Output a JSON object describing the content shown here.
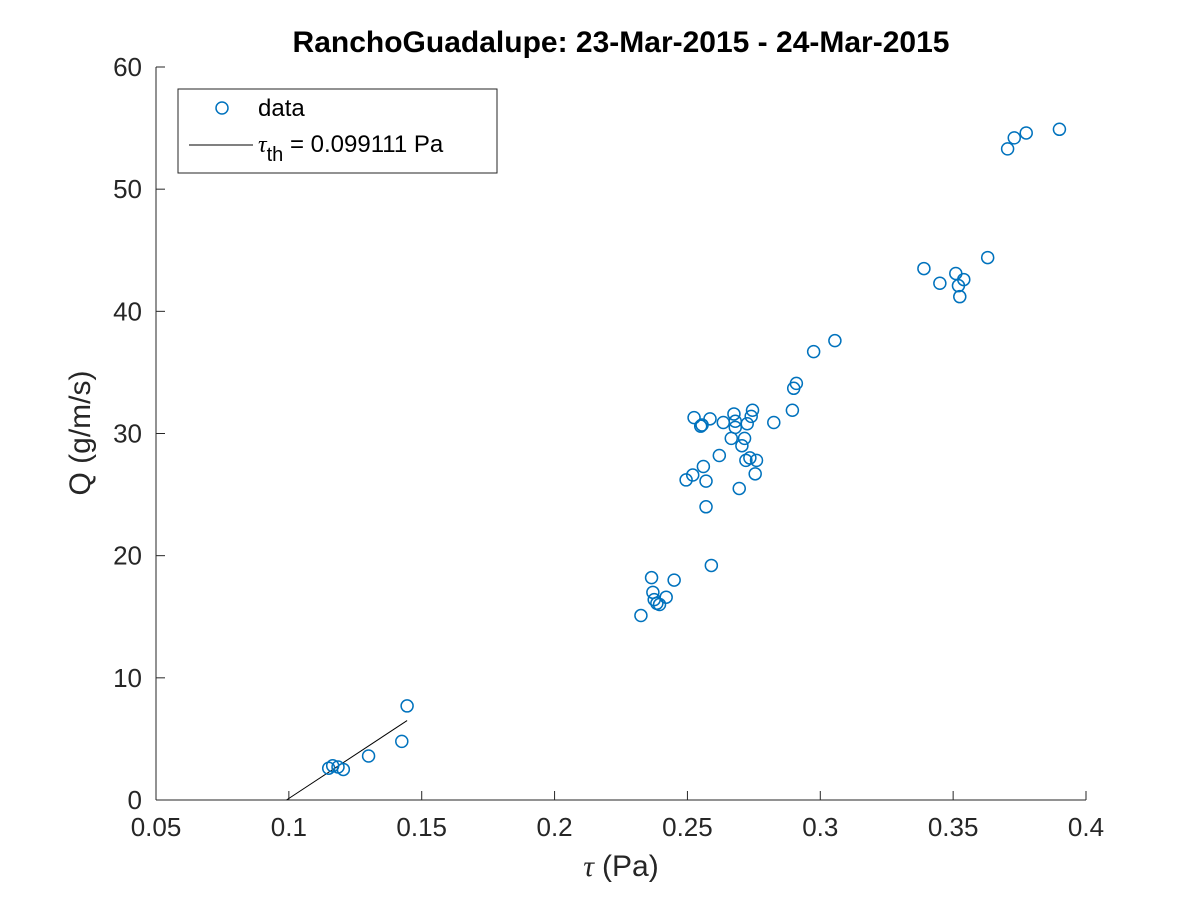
{
  "chart_data": {
    "type": "scatter",
    "title": "RanchoGuadalupe: 23-Mar-2015 - 24-Mar-2015",
    "xlabel_symbol": "τ",
    "xlabel_unit": "(Pa)",
    "ylabel": "Q (g/m/s)",
    "xlim": [
      0.05,
      0.4
    ],
    "ylim": [
      0,
      60
    ],
    "xticks": [
      0.05,
      0.1,
      0.15,
      0.2,
      0.25,
      0.3,
      0.35,
      0.4
    ],
    "xtick_labels": [
      "0.05",
      "0.1",
      "0.15",
      "0.2",
      "0.25",
      "0.3",
      "0.35",
      "0.4"
    ],
    "yticks": [
      0,
      10,
      20,
      30,
      40,
      50,
      60
    ],
    "ytick_labels": [
      "0",
      "10",
      "20",
      "30",
      "40",
      "50",
      "60"
    ],
    "grid": false,
    "legend_position": "top-left",
    "series": [
      {
        "name": "data",
        "marker": "open-circle",
        "color": "#0072BD",
        "x": [
          0.115,
          0.1165,
          0.1185,
          0.1205,
          0.13,
          0.1425,
          0.1445,
          0.2325,
          0.2365,
          0.237,
          0.2375,
          0.2385,
          0.2395,
          0.242,
          0.245,
          0.2495,
          0.252,
          0.2525,
          0.255,
          0.2555,
          0.256,
          0.257,
          0.257,
          0.2585,
          0.259,
          0.262,
          0.2635,
          0.2665,
          0.2675,
          0.268,
          0.268,
          0.2695,
          0.2705,
          0.2715,
          0.272,
          0.2725,
          0.2735,
          0.274,
          0.2745,
          0.2755,
          0.276,
          0.2825,
          0.2895,
          0.29,
          0.291,
          0.2975,
          0.3055,
          0.339,
          0.345,
          0.351,
          0.352,
          0.3525,
          0.354,
          0.363,
          0.3705,
          0.373,
          0.3775,
          0.39
        ],
        "y": [
          2.6,
          2.8,
          2.7,
          2.5,
          3.6,
          4.8,
          7.7,
          15.1,
          18.2,
          17.0,
          16.4,
          16.1,
          16.0,
          16.6,
          18.0,
          26.2,
          26.6,
          31.3,
          30.6,
          30.7,
          27.3,
          24.0,
          26.1,
          31.2,
          19.2,
          28.2,
          30.9,
          29.6,
          31.6,
          31.0,
          30.5,
          25.5,
          29.0,
          29.6,
          27.8,
          30.8,
          28.0,
          31.4,
          31.9,
          26.7,
          27.8,
          30.9,
          31.9,
          33.7,
          34.1,
          36.7,
          37.6,
          43.5,
          42.3,
          43.1,
          42.1,
          41.2,
          42.6,
          44.4,
          53.3,
          54.2,
          54.6,
          54.9
        ]
      },
      {
        "name_symbol": "τ",
        "name_subscript": "th",
        "name_rest": " = 0.099111 Pa",
        "line": true,
        "color": "#000000",
        "x": [
          0.099111,
          0.1445
        ],
        "y": [
          0,
          6.5
        ]
      }
    ]
  }
}
